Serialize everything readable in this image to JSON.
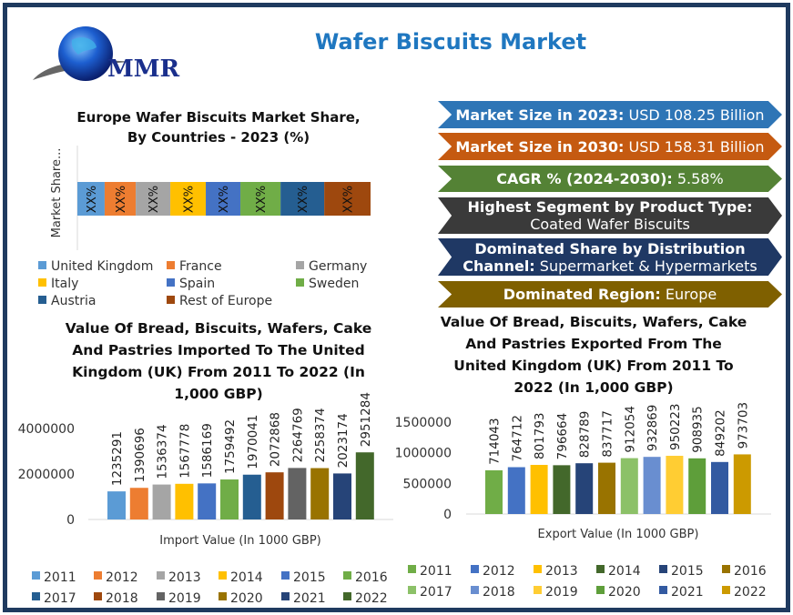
{
  "header": {
    "title": "Wafer Biscuits Market",
    "logo_text": "MMR"
  },
  "banners": [
    {
      "label": "Market Size in 2023:",
      "value": "USD 108.25 Billion",
      "color": "#2e75b6"
    },
    {
      "label": "Market Size in 2030:",
      "value": "USD 158.31 Billion",
      "color": "#c55a11"
    },
    {
      "label": "CAGR % (2024-2030):",
      "value": "5.58%",
      "color": "#548235"
    },
    {
      "label": "Highest Segment by Product Type:",
      "value": "Coated Wafer Biscuits",
      "color": "#3a3a3a"
    },
    {
      "label": "Dominated Share by Distribution",
      "label2": "Channel:",
      "value": "Supermarket & Hypermarkets",
      "color": "#1f3864"
    },
    {
      "label": "Dominated Region:",
      "value": "Europe",
      "color": "#7f6000"
    }
  ],
  "chart_data": [
    {
      "type": "bar",
      "orientation": "horizontal-stacked",
      "title": [
        "Europe Wafer Biscuits Market Share,",
        "By Countries - 2023 (%)"
      ],
      "ylabel": "Market Share...",
      "legend_placement": "bottom",
      "series": [
        {
          "name": "United Kingdom",
          "value": 9.3,
          "label": "XX%",
          "color": "#5b9bd5"
        },
        {
          "name": "France",
          "value": 10.6,
          "label": "XX%",
          "color": "#ed7d31"
        },
        {
          "name": "Germany",
          "value": 11.8,
          "label": "XX%",
          "color": "#a5a5a5"
        },
        {
          "name": "Italy",
          "value": 12.1,
          "label": "XX%",
          "color": "#ffc000"
        },
        {
          "name": "Spain",
          "value": 11.8,
          "label": "XX%",
          "color": "#4472c4"
        },
        {
          "name": "Sweden",
          "value": 13.7,
          "label": "XX%",
          "color": "#70ad47"
        },
        {
          "name": "Austria",
          "value": 14.9,
          "label": "XX%",
          "color": "#255e91"
        },
        {
          "name": "Rest of Europe",
          "value": 15.8,
          "label": "XX%",
          "color": "#9e480e"
        }
      ]
    },
    {
      "type": "bar",
      "title": [
        "Value Of Bread, Biscuits, Wafers, Cake",
        "And Pastries Imported To The United",
        "Kingdom (UK) From 2011 To 2022 (In",
        "1,000 GBP)"
      ],
      "xlabel": "Import Value (In 1000 GBP)",
      "ylim": [
        0,
        4000000
      ],
      "yticks": [
        "0",
        "2000000",
        "4000000"
      ],
      "grid": false,
      "legend_placement": "bottom",
      "categories": [
        "2011",
        "2012",
        "2013",
        "2014",
        "2015",
        "2016",
        "2017",
        "2018",
        "2019",
        "2020",
        "2021",
        "2022"
      ],
      "values": [
        1235291,
        1390696,
        1536374,
        1567778,
        1586169,
        1759492,
        1970041,
        2072868,
        2264769,
        2258374,
        2023174,
        2951284
      ],
      "colors": [
        "#5b9bd5",
        "#ed7d31",
        "#a5a5a5",
        "#ffc000",
        "#4472c4",
        "#70ad47",
        "#255e91",
        "#9e480e",
        "#636363",
        "#997300",
        "#264478",
        "#43682b"
      ]
    },
    {
      "type": "bar",
      "title": [
        "Value Of Bread, Biscuits, Wafers, Cake",
        "And Pastries Exported From The",
        "United Kingdom (UK) From 2011 To",
        "2022 (In 1,000 GBP)"
      ],
      "xlabel": "Export Value (In 1000 GBP)",
      "ylim": [
        0,
        1500000
      ],
      "yticks": [
        "0",
        "500000",
        "1000000",
        "1500000"
      ],
      "grid": false,
      "legend_placement": "bottom",
      "categories": [
        "2011",
        "2012",
        "2013",
        "2014",
        "2015",
        "2016",
        "2017",
        "2018",
        "2019",
        "2020",
        "2021",
        "2022"
      ],
      "values": [
        714043,
        764712,
        801793,
        796664,
        828789,
        837717,
        912054,
        932869,
        950223,
        908935,
        849202,
        973703
      ],
      "colors": [
        "#70ad47",
        "#4472c4",
        "#ffc000",
        "#43682b",
        "#264478",
        "#997300",
        "#8cc168",
        "#698ed0",
        "#ffcd33",
        "#5e9e3a",
        "#335aa1",
        "#cc9a00"
      ]
    }
  ]
}
